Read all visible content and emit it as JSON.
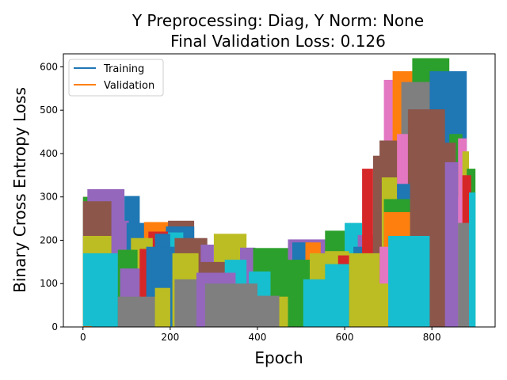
{
  "chart_data": {
    "type": "area",
    "title_line1": "Y Preprocessing: Diag, Y Norm: None",
    "title_line2": "Final Validation Loss: 0.126",
    "xlabel": "Epoch",
    "ylabel": "Binary Cross Entropy Loss",
    "xlim": [
      -45,
      945
    ],
    "ylim": [
      0,
      630
    ],
    "xticks": [
      0,
      200,
      400,
      600,
      800
    ],
    "yticks": [
      0,
      100,
      200,
      300,
      400,
      500,
      600
    ],
    "grid": false,
    "legend_position": "top-left",
    "legend": [
      {
        "label": "Training",
        "color": "#1f77b4"
      },
      {
        "label": "Validation",
        "color": "#ff7f0e"
      }
    ],
    "palette": [
      "#1f77b4",
      "#ff7f0e",
      "#2ca02c",
      "#d62728",
      "#9467bd",
      "#8c564b",
      "#e377c2",
      "#7f7f7f",
      "#bcbd22",
      "#17becf"
    ],
    "fills": [
      {
        "x0": 0,
        "x1": 90,
        "y": 300,
        "color": "#d62728"
      },
      {
        "x0": 0,
        "x1": 75,
        "y": 300,
        "color": "#2ca02c"
      },
      {
        "x0": 10,
        "x1": 95,
        "y": 318,
        "color": "#9467bd"
      },
      {
        "x0": 0,
        "x1": 65,
        "y": 290,
        "color": "#8c564b"
      },
      {
        "x0": 95,
        "x1": 130,
        "y": 302,
        "color": "#1f77b4"
      },
      {
        "x0": 80,
        "x1": 105,
        "y": 245,
        "color": "#9467bd"
      },
      {
        "x0": 100,
        "x1": 165,
        "y": 240,
        "color": "#1f77b4"
      },
      {
        "x0": 140,
        "x1": 210,
        "y": 242,
        "color": "#ff7f0e"
      },
      {
        "x0": 195,
        "x1": 255,
        "y": 245,
        "color": "#8c564b"
      },
      {
        "x0": 190,
        "x1": 255,
        "y": 232,
        "color": "#1f77b4"
      },
      {
        "x0": 150,
        "x1": 195,
        "y": 220,
        "color": "#d62728"
      },
      {
        "x0": 195,
        "x1": 230,
        "y": 218,
        "color": "#17becf"
      },
      {
        "x0": 165,
        "x1": 200,
        "y": 215,
        "color": "#1f77b4"
      },
      {
        "x0": 110,
        "x1": 160,
        "y": 205,
        "color": "#bcbd22"
      },
      {
        "x0": 210,
        "x1": 285,
        "y": 205,
        "color": "#8c564b"
      },
      {
        "x0": 300,
        "x1": 375,
        "y": 215,
        "color": "#bcbd22"
      },
      {
        "x0": 270,
        "x1": 300,
        "y": 190,
        "color": "#9467bd"
      },
      {
        "x0": 360,
        "x1": 395,
        "y": 183,
        "color": "#9467bd"
      },
      {
        "x0": 390,
        "x1": 470,
        "y": 182,
        "color": "#2ca02c"
      },
      {
        "x0": 470,
        "x1": 560,
        "y": 202,
        "color": "#9467bd"
      },
      {
        "x0": 480,
        "x1": 515,
        "y": 195,
        "color": "#1f77b4"
      },
      {
        "x0": 510,
        "x1": 545,
        "y": 195,
        "color": "#ff7f0e"
      },
      {
        "x0": 555,
        "x1": 625,
        "y": 222,
        "color": "#2ca02c"
      },
      {
        "x0": 600,
        "x1": 640,
        "y": 240,
        "color": "#17becf"
      },
      {
        "x0": 630,
        "x1": 680,
        "y": 212,
        "color": "#9467bd"
      },
      {
        "x0": 620,
        "x1": 680,
        "y": 185,
        "color": "#1f77b4"
      },
      {
        "x0": 640,
        "x1": 665,
        "y": 365,
        "color": "#d62728"
      },
      {
        "x0": 665,
        "x1": 700,
        "y": 395,
        "color": "#8c564b"
      },
      {
        "x0": 700,
        "x1": 730,
        "y": 430,
        "color": "#ff7f0e"
      },
      {
        "x0": 690,
        "x1": 730,
        "y": 570,
        "color": "#e377c2"
      },
      {
        "x0": 710,
        "x1": 760,
        "y": 590,
        "color": "#ff7f0e"
      },
      {
        "x0": 755,
        "x1": 840,
        "y": 620,
        "color": "#2ca02c"
      },
      {
        "x0": 730,
        "x1": 815,
        "y": 565,
        "color": "#7f7f7f"
      },
      {
        "x0": 795,
        "x1": 880,
        "y": 590,
        "color": "#1f77b4"
      },
      {
        "x0": 840,
        "x1": 870,
        "y": 445,
        "color": "#2ca02c"
      },
      {
        "x0": 860,
        "x1": 880,
        "y": 435,
        "color": "#e377c2"
      },
      {
        "x0": 870,
        "x1": 885,
        "y": 405,
        "color": "#bcbd22"
      },
      {
        "x0": 880,
        "x1": 900,
        "y": 365,
        "color": "#2ca02c"
      },
      {
        "x0": 845,
        "x1": 855,
        "y": 410,
        "color": "#2ca02c"
      },
      {
        "x0": 720,
        "x1": 800,
        "y": 445,
        "color": "#e377c2"
      },
      {
        "x0": 745,
        "x1": 830,
        "y": 502,
        "color": "#8c564b"
      },
      {
        "x0": 680,
        "x1": 720,
        "y": 430,
        "color": "#8c564b"
      },
      {
        "x0": 685,
        "x1": 720,
        "y": 345,
        "color": "#bcbd22"
      },
      {
        "x0": 720,
        "x1": 750,
        "y": 330,
        "color": "#1f77b4"
      },
      {
        "x0": 690,
        "x1": 750,
        "y": 295,
        "color": "#2ca02c"
      },
      {
        "x0": 690,
        "x1": 750,
        "y": 265,
        "color": "#ff7f0e"
      },
      {
        "x0": 795,
        "x1": 855,
        "y": 425,
        "color": "#8c564b"
      },
      {
        "x0": 855,
        "x1": 870,
        "y": 300,
        "color": "#e377c2"
      },
      {
        "x0": 870,
        "x1": 890,
        "y": 350,
        "color": "#d62728"
      },
      {
        "x0": 830,
        "x1": 860,
        "y": 380,
        "color": "#9467bd"
      },
      {
        "x0": 860,
        "x1": 885,
        "y": 240,
        "color": "#7f7f7f"
      },
      {
        "x0": 885,
        "x1": 900,
        "y": 310,
        "color": "#17becf"
      },
      {
        "x0": 680,
        "x1": 720,
        "y": 185,
        "color": "#e377c2"
      },
      {
        "x0": 0,
        "x1": 65,
        "y": 210,
        "color": "#bcbd22"
      },
      {
        "x0": 0,
        "x1": 80,
        "y": 170,
        "color": "#17becf"
      },
      {
        "x0": 80,
        "x1": 125,
        "y": 178,
        "color": "#2ca02c"
      },
      {
        "x0": 85,
        "x1": 130,
        "y": 135,
        "color": "#9467bd"
      },
      {
        "x0": 130,
        "x1": 175,
        "y": 180,
        "color": "#d62728"
      },
      {
        "x0": 145,
        "x1": 210,
        "y": 185,
        "color": "#1f77b4"
      },
      {
        "x0": 205,
        "x1": 265,
        "y": 170,
        "color": "#bcbd22"
      },
      {
        "x0": 270,
        "x1": 330,
        "y": 150,
        "color": "#8c564b"
      },
      {
        "x0": 325,
        "x1": 375,
        "y": 155,
        "color": "#17becf"
      },
      {
        "x0": 380,
        "x1": 430,
        "y": 128,
        "color": "#17becf"
      },
      {
        "x0": 430,
        "x1": 470,
        "y": 135,
        "color": "#2ca02c"
      },
      {
        "x0": 470,
        "x1": 520,
        "y": 155,
        "color": "#2ca02c"
      },
      {
        "x0": 520,
        "x1": 565,
        "y": 170,
        "color": "#bcbd22"
      },
      {
        "x0": 555,
        "x1": 610,
        "y": 175,
        "color": "#bcbd22"
      },
      {
        "x0": 585,
        "x1": 640,
        "y": 165,
        "color": "#d62728"
      },
      {
        "x0": 610,
        "x1": 680,
        "y": 170,
        "color": "#bcbd22"
      },
      {
        "x0": 80,
        "x1": 180,
        "y": 70,
        "color": "#7f7f7f"
      },
      {
        "x0": 165,
        "x1": 200,
        "y": 90,
        "color": "#bcbd22"
      },
      {
        "x0": 210,
        "x1": 290,
        "y": 110,
        "color": "#7f7f7f"
      },
      {
        "x0": 260,
        "x1": 350,
        "y": 125,
        "color": "#9467bd"
      },
      {
        "x0": 280,
        "x1": 400,
        "y": 100,
        "color": "#7f7f7f"
      },
      {
        "x0": 380,
        "x1": 450,
        "y": 72,
        "color": "#7f7f7f"
      },
      {
        "x0": 450,
        "x1": 470,
        "y": 70,
        "color": "#bcbd22"
      },
      {
        "x0": 505,
        "x1": 600,
        "y": 110,
        "color": "#17becf"
      },
      {
        "x0": 555,
        "x1": 610,
        "y": 145,
        "color": "#17becf"
      },
      {
        "x0": 640,
        "x1": 700,
        "y": 100,
        "color": "#bcbd22"
      },
      {
        "x0": 700,
        "x1": 795,
        "y": 210,
        "color": "#17becf"
      },
      {
        "x0": 0,
        "x1": 20,
        "y": 2,
        "color": "#ff7f0e"
      }
    ]
  }
}
